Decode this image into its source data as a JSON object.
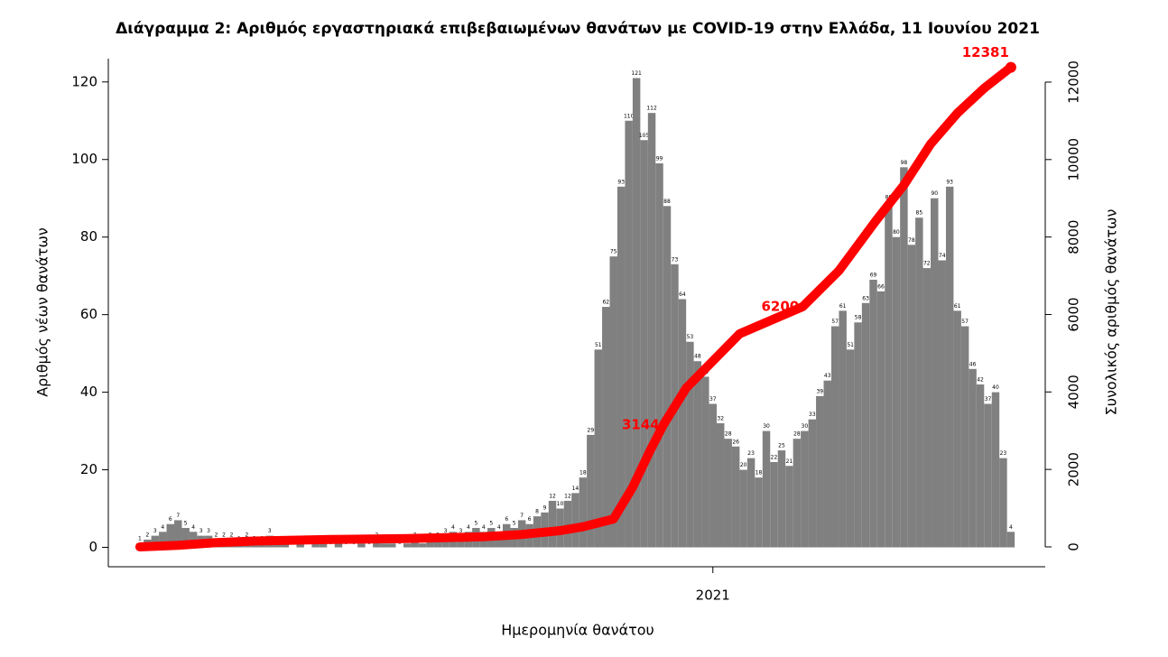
{
  "chart_data": {
    "type": "bar",
    "title": "Διάγραμμα 2: Αριθμός εργαστηριακά επιβεβαιωμένων θανάτων με COVID-19 στην Ελλάδα, 11 Ιουνίου 2021",
    "xlabel": "Ημερομηνία θανάτου",
    "ylabel": "Αριθμός νέων θανάτων",
    "y2label": "Συνολικός αριθμός θανάτων",
    "x": [
      0,
      4,
      8,
      12,
      16,
      20,
      24,
      28,
      32,
      36,
      40,
      44,
      48,
      52,
      56,
      60,
      64,
      68,
      72,
      76,
      80,
      84,
      88,
      92,
      96,
      100,
      104,
      108,
      112,
      116,
      120,
      124,
      128,
      132,
      136,
      140,
      144,
      148,
      152,
      156,
      160,
      164,
      168,
      172,
      176,
      180,
      184,
      188,
      192,
      196,
      200,
      204,
      208,
      212,
      216,
      220,
      224,
      228,
      232,
      236,
      240,
      244,
      248,
      252,
      256,
      260,
      264,
      268,
      272,
      276,
      280,
      284,
      288,
      292,
      296,
      300,
      304,
      308,
      312,
      316,
      320,
      324,
      328,
      332,
      336,
      340,
      344,
      348,
      352,
      356,
      360,
      364,
      368,
      372,
      376,
      380,
      384,
      388,
      392,
      396,
      400,
      404,
      408,
      412,
      416,
      420,
      424,
      428,
      432,
      436,
      440,
      444,
      448,
      452,
      456
    ],
    "values": [
      1,
      2,
      3,
      4,
      6,
      7,
      5,
      4,
      3,
      3,
      2,
      2,
      2,
      1,
      2,
      1,
      1,
      3,
      1,
      1,
      0,
      1,
      0,
      1,
      1,
      0,
      1,
      0,
      0,
      1,
      0,
      2,
      1,
      1,
      0,
      1,
      2,
      1,
      2,
      2,
      3,
      4,
      3,
      4,
      5,
      4,
      5,
      4,
      6,
      5,
      7,
      6,
      8,
      9,
      12,
      10,
      12,
      14,
      18,
      29,
      51,
      62,
      75,
      93,
      110,
      121,
      105,
      112,
      99,
      88,
      73,
      64,
      53,
      48,
      44,
      37,
      32,
      28,
      26,
      20,
      23,
      18,
      30,
      22,
      25,
      21,
      28,
      30,
      33,
      39,
      43,
      57,
      61,
      51,
      58,
      63,
      69,
      66,
      89,
      80,
      98,
      78,
      85,
      72,
      90,
      74,
      93,
      61,
      57,
      46,
      42,
      37,
      40,
      23,
      4
    ],
    "color": "#808080",
    "line": {
      "x": [
        0,
        20,
        40,
        60,
        100,
        140,
        180,
        200,
        220,
        232,
        240,
        248,
        258,
        267,
        274,
        286,
        300,
        314,
        328,
        347,
        366,
        385,
        400,
        414,
        428,
        442,
        456
      ],
      "values": [
        0,
        40,
        110,
        150,
        190,
        215,
        260,
        320,
        420,
        520,
        620,
        720,
        1540,
        2470,
        3144,
        4100,
        4800,
        5500,
        5800,
        6200,
        7130,
        8400,
        9340,
        10400,
        11200,
        11840,
        12381
      ],
      "color": "#ff0000",
      "axis": "y2"
    },
    "annotations": [
      {
        "x": 274,
        "value": 3144
      },
      {
        "x": 347,
        "value": 6200
      },
      {
        "x": 456,
        "value": 12381
      }
    ],
    "xlim": [
      -16.5,
      474
    ],
    "xticks": [
      {
        "value": 300,
        "label": "2021"
      }
    ],
    "ylim": [
      -5,
      126
    ],
    "yticks": [
      0,
      20,
      40,
      60,
      80,
      100,
      120
    ],
    "y2lim": [
      -513,
      12605
    ],
    "y2ticks": [
      0,
      2000,
      4000,
      6000,
      8000,
      10000,
      12000
    ]
  }
}
